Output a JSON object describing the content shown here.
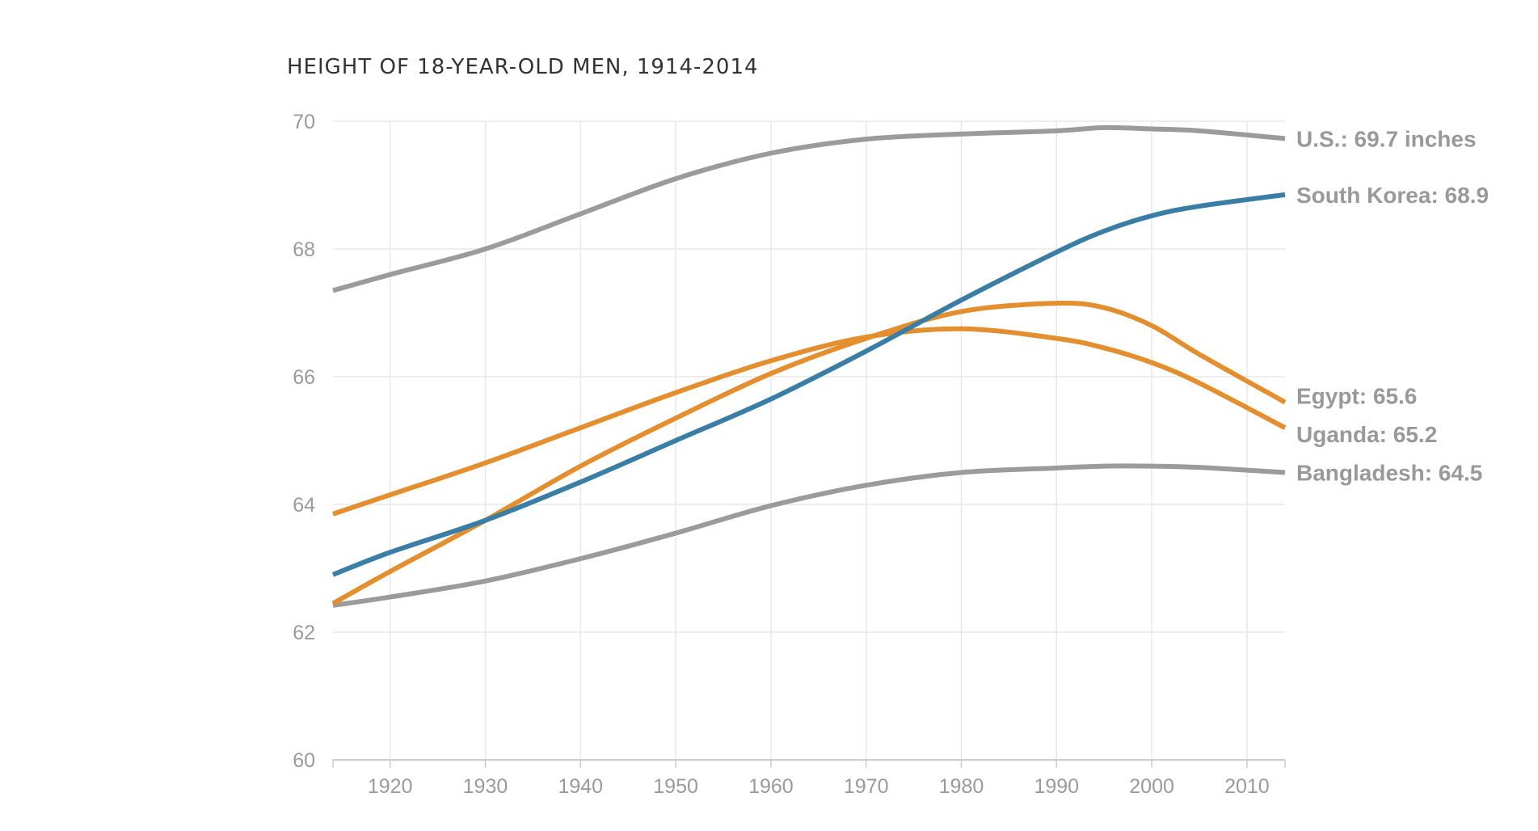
{
  "chart_data": {
    "type": "line",
    "title": "HEIGHT OF 18-YEAR-OLD MEN, 1914-2014",
    "xlabel": "",
    "ylabel": "",
    "xlim": [
      1914,
      2014
    ],
    "ylim": [
      60,
      70
    ],
    "x_ticks": [
      1920,
      1930,
      1940,
      1950,
      1960,
      1970,
      1980,
      1990,
      2000,
      2010
    ],
    "y_ticks": [
      60,
      62,
      64,
      66,
      68,
      70
    ],
    "grid": true,
    "colors": {
      "gray": "#9b9b9b",
      "blue": "#3a7ea6",
      "orange": "#e38f2f"
    },
    "series": [
      {
        "name": "U.S.",
        "end_label": "U.S.: 69.7 inches",
        "color": "gray",
        "x": [
          1914,
          1920,
          1930,
          1940,
          1950,
          1960,
          1970,
          1980,
          1990,
          1995,
          2000,
          2005,
          2014
        ],
        "values": [
          67.35,
          67.6,
          68.0,
          68.55,
          69.1,
          69.5,
          69.72,
          69.8,
          69.85,
          69.9,
          69.88,
          69.85,
          69.73
        ]
      },
      {
        "name": "South Korea",
        "end_label": "South Korea: 68.9",
        "color": "blue",
        "x": [
          1914,
          1920,
          1930,
          1940,
          1950,
          1960,
          1970,
          1980,
          1990,
          1995,
          2000,
          2005,
          2014
        ],
        "values": [
          62.9,
          63.25,
          63.75,
          64.35,
          65.0,
          65.65,
          66.4,
          67.2,
          67.95,
          68.28,
          68.52,
          68.67,
          68.85
        ]
      },
      {
        "name": "Egypt",
        "end_label": "Egypt: 65.6",
        "color": "orange",
        "x": [
          1914,
          1920,
          1930,
          1940,
          1950,
          1960,
          1970,
          1980,
          1990,
          1995,
          2000,
          2005,
          2014
        ],
        "values": [
          62.45,
          62.95,
          63.75,
          64.6,
          65.35,
          66.05,
          66.6,
          67.02,
          67.15,
          67.08,
          66.8,
          66.35,
          65.6
        ]
      },
      {
        "name": "Uganda",
        "end_label": "Uganda: 65.2",
        "color": "orange",
        "x": [
          1914,
          1920,
          1930,
          1940,
          1950,
          1960,
          1970,
          1980,
          1990,
          1995,
          2000,
          2005,
          2014
        ],
        "values": [
          63.85,
          64.15,
          64.65,
          65.2,
          65.75,
          66.25,
          66.62,
          66.75,
          66.6,
          66.45,
          66.22,
          65.9,
          65.2
        ]
      },
      {
        "name": "Bangladesh",
        "end_label": "Bangladesh: 64.5",
        "color": "gray",
        "x": [
          1914,
          1920,
          1930,
          1940,
          1950,
          1960,
          1970,
          1980,
          1990,
          1995,
          2000,
          2005,
          2014
        ],
        "values": [
          62.42,
          62.55,
          62.8,
          63.15,
          63.55,
          63.98,
          64.3,
          64.5,
          64.57,
          64.6,
          64.6,
          64.58,
          64.5
        ]
      }
    ]
  }
}
